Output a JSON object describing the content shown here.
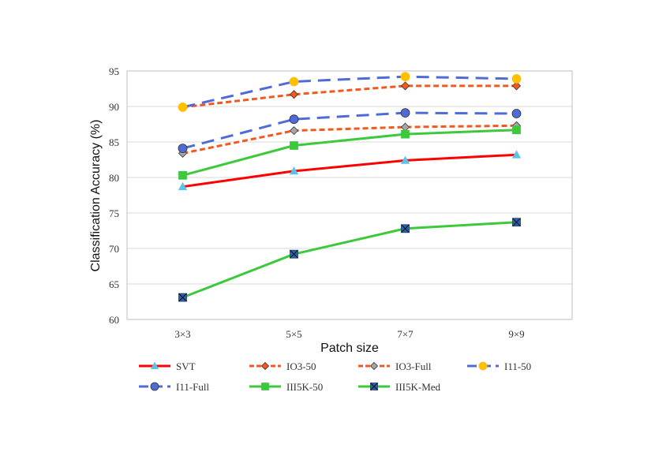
{
  "chart_data": {
    "type": "line",
    "title": "",
    "xlabel": "Patch size",
    "ylabel": "Classification Accuracy (%)",
    "categories": [
      "3×3",
      "5×5",
      "7×7",
      "9×9"
    ],
    "ylim": [
      60,
      95
    ],
    "yticks": [
      60,
      65,
      70,
      75,
      80,
      85,
      90,
      95
    ],
    "grid": true,
    "legend_position": "bottom",
    "series": [
      {
        "name": "SVT",
        "values": [
          78.7,
          80.9,
          82.4,
          83.2
        ],
        "color": "#ff0000",
        "marker_color": "#5bc3e8",
        "marker": "triangle",
        "dash": "solid"
      },
      {
        "name": "IO3-50",
        "values": [
          89.9,
          91.7,
          92.9,
          92.9
        ],
        "color": "#f4581e",
        "marker_color": "#f4581e",
        "marker": "diamond",
        "dash": "short"
      },
      {
        "name": "IO3-Full",
        "values": [
          83.4,
          86.6,
          87.1,
          87.3
        ],
        "color": "#f4581e",
        "marker_color": "#a6a6a6",
        "marker": "diamond",
        "dash": "short"
      },
      {
        "name": "I11-50",
        "values": [
          89.9,
          93.5,
          94.2,
          93.9
        ],
        "color": "#4f6bd8",
        "marker_color": "#ffc000",
        "marker": "circle",
        "dash": "long"
      },
      {
        "name": "I11-Full",
        "values": [
          84.1,
          88.2,
          89.1,
          89.0
        ],
        "color": "#4f6bd8",
        "marker_color": "#4f6bd8",
        "marker": "circle",
        "dash": "long"
      },
      {
        "name": "III5K-50",
        "values": [
          80.3,
          84.5,
          86.1,
          86.7
        ],
        "color": "#3cc93c",
        "marker_color": "#3cc93c",
        "marker": "square",
        "dash": "solid"
      },
      {
        "name": "III5K-Med",
        "values": [
          63.1,
          69.2,
          72.8,
          73.7
        ],
        "color": "#3cc93c",
        "marker_color": "#2e5fa8",
        "marker": "xsquare",
        "dash": "solid"
      }
    ]
  }
}
